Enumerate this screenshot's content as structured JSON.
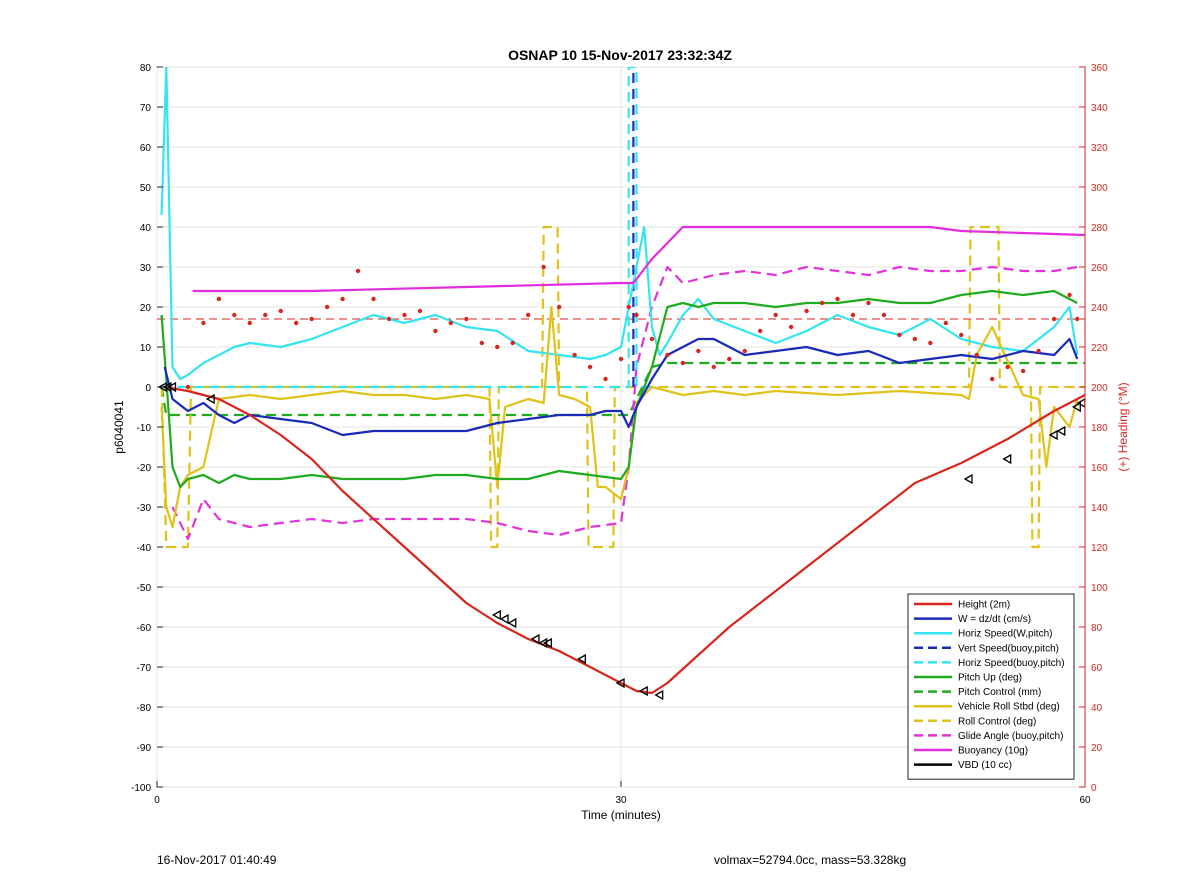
{
  "chart_data": {
    "type": "line",
    "title": "OSNAP 10 15-Nov-2017 23:32:34Z",
    "xlabel": "Time (minutes)",
    "ylabel_left": "p6040041",
    "ylabel_right": "(+) Heading (°M)",
    "xlim": [
      0,
      60
    ],
    "ylim_left": [
      -100,
      80
    ],
    "ylim_right": [
      0,
      360
    ],
    "x_ticks": [
      "0",
      "30",
      "60"
    ],
    "y_ticks_left": [
      "80",
      "70",
      "60",
      "50",
      "40",
      "30",
      "20",
      "10",
      "0",
      "-10",
      "-20",
      "-30",
      "-40",
      "-50",
      "-60",
      "-70",
      "-80",
      "-90",
      "-100"
    ],
    "y_ticks_right": [
      "360",
      "340",
      "320",
      "300",
      "280",
      "260",
      "240",
      "220",
      "200",
      "180",
      "160",
      "140",
      "120",
      "100",
      "80",
      "60",
      "40",
      "20",
      "0"
    ],
    "grid": true,
    "legend_position": "bottom-right",
    "heading_reference": {
      "value": 17,
      "color": "#d8261c",
      "style": "dashed"
    },
    "series": [
      {
        "name": "Height (2m)",
        "color": "#d8261c",
        "style": "solid",
        "x": [
          0.5,
          2,
          4,
          6,
          8,
          10,
          12,
          14,
          16,
          18,
          20,
          22,
          24,
          26,
          28,
          30,
          31,
          32,
          33,
          35,
          37,
          40,
          43,
          46,
          49,
          52,
          55,
          58,
          60
        ],
        "y": [
          0,
          -1,
          -3,
          -7,
          -12,
          -18,
          -26,
          -33,
          -40,
          -47,
          -54,
          -59,
          -63,
          -66,
          -70,
          -74,
          -76,
          -76.5,
          -74,
          -67,
          -60,
          -51,
          -42,
          -33,
          -24,
          -19,
          -13,
          -6,
          -2
        ]
      },
      {
        "name": "W = dz/dt (cm/s)",
        "color": "#1a2ab8",
        "style": "solid",
        "x": [
          0.5,
          1,
          2,
          3,
          4,
          5,
          6,
          8,
          10,
          12,
          14,
          16,
          18,
          20,
          22,
          24,
          26,
          28,
          29,
          30,
          30.5,
          31,
          32,
          33,
          34,
          35,
          36,
          37,
          38,
          40,
          42,
          44,
          46,
          48,
          50,
          52,
          54,
          56,
          58,
          59,
          59.5
        ],
        "y": [
          5,
          -3,
          -6,
          -4,
          -7,
          -9,
          -7,
          -8,
          -9,
          -12,
          -11,
          -11,
          -11,
          -11,
          -9,
          -8,
          -7,
          -7,
          -6,
          -6,
          -10,
          -5,
          2,
          8,
          10,
          12,
          12,
          10,
          8,
          9,
          10,
          8,
          9,
          6,
          7,
          8,
          7,
          9,
          8,
          12,
          7
        ]
      },
      {
        "name": "Horiz Speed(W,pitch)",
        "color": "#33e5f0",
        "style": "solid",
        "x": [
          0.3,
          0.6,
          1,
          1.5,
          2,
          3,
          4,
          5,
          6,
          8,
          10,
          12,
          14,
          16,
          18,
          20,
          22,
          24,
          26,
          28,
          29,
          30,
          30.5,
          31,
          31.5,
          32,
          32.5,
          33,
          34,
          35,
          36,
          38,
          40,
          42,
          44,
          46,
          48,
          50,
          52,
          54,
          56,
          58,
          59,
          59.5
        ],
        "y": [
          43,
          80,
          5,
          2,
          3,
          6,
          8,
          10,
          11,
          10,
          12,
          15,
          18,
          16,
          18,
          15,
          14,
          9,
          8,
          7,
          8,
          10,
          20,
          30,
          40,
          15,
          8,
          11,
          18,
          22,
          17,
          14,
          11,
          14,
          18,
          15,
          13,
          17,
          12,
          10,
          9,
          15,
          20,
          8
        ]
      },
      {
        "name": "Vert Speed(buoy,pitch)",
        "color": "#1a2ab8",
        "style": "dashed",
        "x": [
          30.8,
          30.8
        ],
        "y": [
          0,
          80
        ]
      },
      {
        "name": "Horiz Speed(buoy,pitch)",
        "color": "#33e5f0",
        "style": "dashed",
        "x": [
          0.3,
          30.5,
          30.5,
          31,
          31,
          32
        ],
        "y": [
          0,
          0,
          80,
          80,
          0,
          0
        ]
      },
      {
        "name": "Pitch Up (deg)",
        "color": "#1faa1f",
        "style": "solid",
        "x": [
          0.3,
          0.6,
          1,
          1.5,
          2,
          3,
          4,
          5,
          6,
          8,
          10,
          12,
          14,
          16,
          18,
          20,
          22,
          24,
          26,
          28,
          30,
          30.5,
          31,
          32,
          33,
          34,
          35,
          36,
          38,
          40,
          42,
          44,
          46,
          48,
          50,
          52,
          54,
          56,
          58,
          59.5
        ],
        "y": [
          18,
          2,
          -20,
          -25,
          -23,
          -22,
          -24,
          -22,
          -23,
          -23,
          -22,
          -23,
          -23,
          -23,
          -22,
          -22,
          -23,
          -23,
          -21,
          -22,
          -23,
          -20,
          -5,
          5,
          20,
          21,
          20,
          21,
          21,
          20,
          21,
          21,
          22,
          21,
          21,
          23,
          24,
          23,
          24,
          21
        ]
      },
      {
        "name": "Pitch Control (mm)",
        "color": "#1faa1f",
        "style": "dashed",
        "x": [
          0.3,
          0.6,
          3,
          30.5,
          32,
          33,
          60
        ],
        "y": [
          0,
          -7,
          -7,
          -7,
          5,
          6,
          6
        ]
      },
      {
        "name": "Vehicle Roll Stbd (deg)",
        "color": "#e0c21a",
        "style": "solid",
        "x": [
          0.3,
          0.6,
          1,
          1.5,
          2,
          3,
          4,
          6,
          8,
          10,
          12,
          14,
          16,
          18,
          20,
          21.5,
          22,
          22.5,
          24,
          25,
          25.5,
          26,
          27,
          28,
          28.5,
          29,
          30,
          30.5,
          31,
          32,
          34,
          36,
          38,
          40,
          44,
          48,
          52,
          52.5,
          53,
          54,
          56,
          57,
          57.5,
          58,
          59,
          59.5
        ],
        "y": [
          -5,
          -30,
          -35,
          -25,
          -22,
          -20,
          -3,
          -2,
          -3,
          -2,
          -1,
          -2,
          -2,
          -3,
          -2,
          -3,
          -25,
          -5,
          -3,
          -4,
          20,
          -2,
          -3,
          -5,
          -25,
          -25,
          -28,
          -20,
          -4,
          0,
          -2,
          -1,
          -2,
          -1,
          -2,
          -1,
          -2,
          -3,
          8,
          15,
          -2,
          -3,
          -20,
          -5,
          -10,
          -3
        ]
      },
      {
        "name": "Roll Control (deg)",
        "color": "#e0c21a",
        "style": "dashed",
        "x": [
          0.3,
          0.6,
          2,
          2.2,
          21.5,
          21.6,
          22,
          22.1,
          24.9,
          25,
          25.9,
          26,
          27.8,
          27.9,
          29.5,
          29.6,
          52.5,
          52.6,
          54.4,
          54.5,
          56.5,
          56.6,
          57,
          57.1,
          60
        ],
        "y": [
          0,
          -40,
          -40,
          0,
          0,
          -40,
          -40,
          0,
          0,
          40,
          40,
          0,
          0,
          -40,
          -40,
          0,
          0,
          40,
          40,
          0,
          0,
          -40,
          -40,
          0,
          0
        ]
      },
      {
        "name": "Glide Angle (buoy,pitch)",
        "color": "#e333d8",
        "style": "dashed",
        "x": [
          1,
          2,
          3,
          4,
          6,
          8,
          10,
          12,
          14,
          16,
          18,
          20,
          22,
          24,
          26,
          28,
          30,
          30.5,
          31,
          32,
          33,
          34,
          36,
          38,
          40,
          42,
          44,
          46,
          48,
          50,
          52,
          54,
          56,
          58,
          59.5
        ],
        "y": [
          -30,
          -38,
          -28,
          -33,
          -35,
          -34,
          -33,
          -34,
          -33,
          -33,
          -33,
          -33,
          -34,
          -36,
          -37,
          -35,
          -34,
          -20,
          5,
          20,
          30,
          26,
          28,
          29,
          28,
          30,
          29,
          28,
          30,
          29,
          29,
          30,
          29,
          29,
          30
        ]
      },
      {
        "name": "Buoyancy (10g)",
        "color": "#e22ce0",
        "style": "solid",
        "x": [
          2.3,
          10,
          20,
          30,
          30.8,
          32,
          34,
          50,
          52,
          60
        ],
        "y": [
          24,
          24,
          25,
          26,
          26,
          32,
          40,
          40,
          39,
          38
        ]
      },
      {
        "name": "VBD (10 cc)",
        "color": "#000000",
        "style": "solid",
        "x": [
          0.3,
          0.6,
          2,
          10,
          20,
          30,
          30.5,
          32,
          33,
          34,
          40,
          60
        ],
        "y": [
          5,
          -6.5,
          -7,
          -7,
          -7,
          -7,
          -6,
          2,
          5,
          6,
          6.5,
          7
        ]
      }
    ],
    "heading_dots": {
      "color": "#d8261c",
      "x": [
        2,
        3,
        4,
        5,
        6,
        7,
        8,
        9,
        10,
        11,
        12,
        13,
        14,
        15,
        16,
        17,
        18,
        19,
        20,
        21,
        22,
        23,
        24,
        25,
        26,
        27,
        28,
        29,
        30,
        30.5,
        31,
        32,
        33,
        34,
        35,
        36,
        37,
        38,
        39,
        40,
        41,
        42,
        43,
        44,
        45,
        46,
        47,
        48,
        49,
        50,
        51,
        52,
        53,
        54,
        55,
        56,
        57,
        58,
        59,
        59.5
      ],
      "y": [
        200,
        232,
        244,
        236,
        232,
        236,
        238,
        232,
        234,
        240,
        244,
        258,
        244,
        234,
        236,
        238,
        228,
        232,
        234,
        222,
        220,
        222,
        236,
        260,
        240,
        216,
        210,
        204,
        214,
        240,
        236,
        224,
        216,
        212,
        218,
        210,
        214,
        218,
        228,
        236,
        230,
        238,
        242,
        244,
        236,
        242,
        236,
        226,
        224,
        222,
        232,
        226,
        216,
        204,
        210,
        208,
        218,
        234,
        246,
        234
      ]
    },
    "markers": {
      "x": [
        0.4,
        0.7,
        1,
        3.5,
        22,
        22.5,
        23,
        24.5,
        25,
        25.3,
        27.5,
        30,
        31.5,
        32.5,
        52.5,
        55,
        58,
        58.5,
        59.5,
        59.8
      ],
      "y": [
        0,
        0,
        0,
        -3,
        -57,
        -58,
        -59,
        -63,
        -64,
        -64,
        -68,
        -74,
        -76,
        -77,
        -23,
        -18,
        -12,
        -11,
        -5,
        -4
      ]
    }
  },
  "footer": {
    "left": "16-Nov-2017 01:40:49",
    "right": "volmax=52794.0cc, mass=53.328kg"
  }
}
